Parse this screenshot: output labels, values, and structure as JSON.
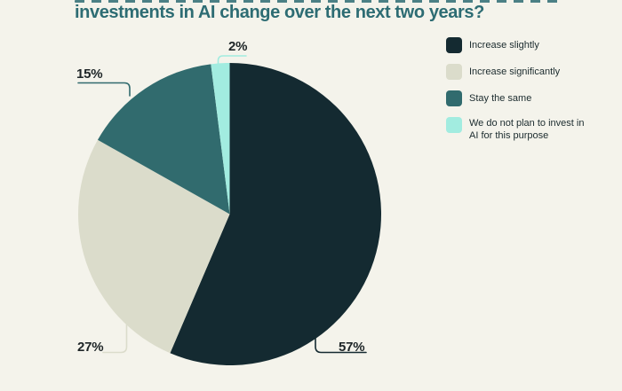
{
  "title": {
    "visible_line": "investments in AI change over the next two years?"
  },
  "chart_data": {
    "type": "pie",
    "title": "investments in AI change over the next two years?",
    "categories": [
      "Increase slightly",
      "Increase significantly",
      "Stay the same",
      "We do not plan to invest in AI for this purpose"
    ],
    "values": [
      57,
      27,
      15,
      2
    ],
    "value_labels": [
      "57%",
      "27%",
      "15%",
      "2%"
    ],
    "colors": [
      "#142a31",
      "#dbdccb",
      "#316b6e",
      "#a2ece0"
    ],
    "start_angle": "top",
    "direction": "clockwise",
    "legend_position": "right",
    "grid": false
  },
  "legend": {
    "items": [
      {
        "label": "Increase slightly"
      },
      {
        "label": "Increase significantly"
      },
      {
        "label": "Stay the same"
      },
      {
        "label": "We do not plan to invest in AI for this purpose"
      }
    ]
  },
  "colors": {
    "background": "#f4f3eb",
    "title_text": "#2d6c73",
    "label_text": "#1e2527"
  }
}
